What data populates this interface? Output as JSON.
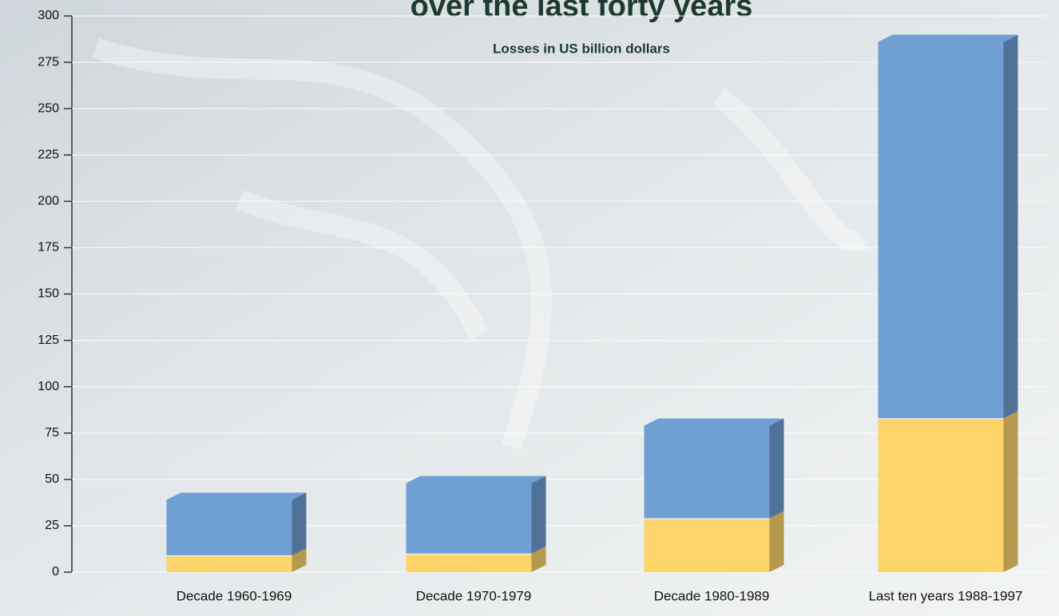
{
  "chart_data": {
    "type": "stacked_bar",
    "title": "over the last forty years",
    "subtitle": "Losses in US billion dollars",
    "categories": [
      "Decade 1960-1969",
      "Decade 1970-1979",
      "Decade 1980-1989",
      "Last ten years 1988-1997"
    ],
    "series": [
      {
        "color": "#fcd46a",
        "values": [
          9,
          10,
          29,
          83
        ]
      },
      {
        "color": "#6f9fd3",
        "values": [
          30,
          38,
          50,
          203
        ]
      }
    ],
    "ylim": [
      0,
      300
    ],
    "yticks": [
      0,
      25,
      50,
      75,
      100,
      125,
      150,
      175,
      200,
      225,
      250,
      275,
      300
    ],
    "grid": true
  }
}
